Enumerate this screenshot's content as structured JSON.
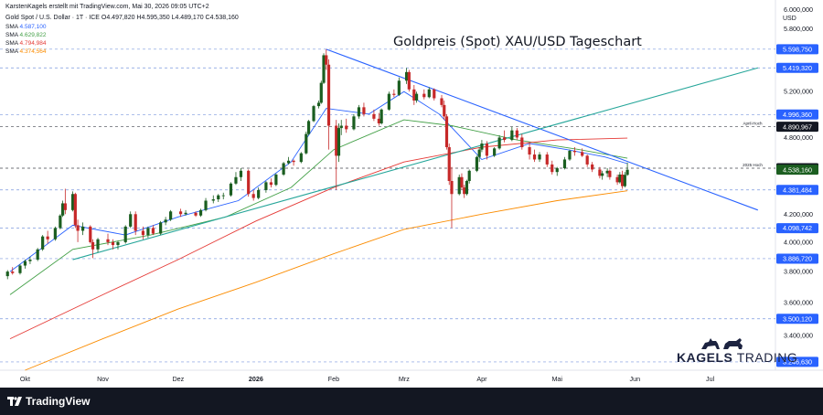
{
  "header": {
    "attribution": "KarstenKagels erstellt mit TradingView.com, Mai 30, 2026 09:05 UTC+2",
    "symbol_line": "Gold Spot / U.S. Dollar · 1T · ICE  O4.497,820 H4.595,350 L4.489,170 C4.538,160",
    "sma": [
      {
        "name": "SMA",
        "value": "4.587,100",
        "color": "#2962ff"
      },
      {
        "name": "SMA",
        "value": "4.629,822",
        "color": "#43a047"
      },
      {
        "name": "SMA",
        "value": "4.794,984",
        "color": "#e53935"
      },
      {
        "name": "SMA",
        "value": "4.374,564",
        "color": "#fb8c00"
      }
    ]
  },
  "title": "Goldpreis (Spot) XAU/USD Tageschart",
  "footer": {
    "brand": "TradingView"
  },
  "logo": {
    "kagels": "KAGELS",
    "trading": "TRADING"
  },
  "chart_data": {
    "type": "candlestick",
    "currency": "USD",
    "y_ticks": [
      "6.000,000",
      "5.800,000",
      "5.200,000",
      "4.800,000",
      "4.200,000",
      "4.000,000",
      "3.800,000",
      "3.600,000",
      "3.400,000"
    ],
    "y_tick_values": [
      6000,
      5800,
      5200,
      4800,
      4200,
      4000,
      3800,
      3600,
      3400
    ],
    "ylim": [
      3200,
      6100
    ],
    "x_ticks": [
      {
        "label": "Okt",
        "date": "2025-10-01",
        "bold": false
      },
      {
        "label": "Nov",
        "date": "2025-11-01",
        "bold": false
      },
      {
        "label": "Dez",
        "date": "2025-12-01",
        "bold": false
      },
      {
        "label": "2026",
        "date": "2026-01-01",
        "bold": true
      },
      {
        "label": "Feb",
        "date": "2026-02-01",
        "bold": false
      },
      {
        "label": "Mrz",
        "date": "2026-03-01",
        "bold": false
      },
      {
        "label": "Apr",
        "date": "2026-04-01",
        "bold": false
      },
      {
        "label": "Mai",
        "date": "2026-05-01",
        "bold": false
      },
      {
        "label": "Jun",
        "date": "2026-06-01",
        "bold": false
      },
      {
        "label": "Jul",
        "date": "2026-07-01",
        "bold": false
      }
    ],
    "horizontal_levels": [
      {
        "value": 5598.75,
        "label": "5.598,750",
        "style": "dashed",
        "color": "#5b7fd6"
      },
      {
        "value": 5419.32,
        "label": "5.419,320",
        "style": "dashed",
        "color": "#5b7fd6"
      },
      {
        "value": 4996.36,
        "label": "4.996,360",
        "style": "dashed",
        "color": "#5b7fd6"
      },
      {
        "value": 4890.967,
        "label": "4.890,967",
        "style": "dashed",
        "color": "#131722",
        "note": "April-Hoch"
      },
      {
        "value": 4550.52,
        "label": "4.550,520",
        "style": "dashed",
        "color": "#131722",
        "note": "2025 Hoch"
      },
      {
        "value": 4381.484,
        "label": "4.381,484",
        "style": "dashed",
        "color": "#5b7fd6"
      },
      {
        "value": 4098.742,
        "label": "4.098,742",
        "style": "dashed",
        "color": "#5b7fd6"
      },
      {
        "value": 3886.72,
        "label": "3.886,720",
        "style": "dashed",
        "color": "#5b7fd6"
      },
      {
        "value": 3500.12,
        "label": "3.500,120",
        "style": "dashed",
        "color": "#5b7fd6"
      },
      {
        "value": 3246.63,
        "label": "3.246,630",
        "style": "dashed",
        "color": "#5b7fd6"
      }
    ],
    "last_price": {
      "value": 4538.16,
      "label": "4.538,160"
    },
    "trendlines": [
      {
        "name": "Abwärtstrend",
        "color": "#2962ff",
        "from": {
          "date": "2026-01-29",
          "value": 5598.75
        },
        "to": {
          "date": "2026-07-20",
          "value": 4230
        }
      },
      {
        "name": "Aufwärtstrend",
        "color": "#26a69a",
        "from": {
          "date": "2025-10-20",
          "value": 3880
        },
        "to": {
          "date": "2026-07-20",
          "value": 5419.32
        }
      }
    ],
    "sma_lines": [
      {
        "color": "#2962ff",
        "points": [
          [
            "2025-09-25",
            3800
          ],
          [
            "2025-10-20",
            4120
          ],
          [
            "2025-11-10",
            4050
          ],
          [
            "2025-12-01",
            4180
          ],
          [
            "2025-12-25",
            4300
          ],
          [
            "2026-01-15",
            4600
          ],
          [
            "2026-01-29",
            5050
          ],
          [
            "2026-02-15",
            5000
          ],
          [
            "2026-03-01",
            5200
          ],
          [
            "2026-03-15",
            5000
          ],
          [
            "2026-04-01",
            4620
          ],
          [
            "2026-04-20",
            4750
          ],
          [
            "2026-05-05",
            4700
          ],
          [
            "2026-05-20",
            4640
          ],
          [
            "2026-05-29",
            4587
          ]
        ]
      },
      {
        "color": "#43a047",
        "points": [
          [
            "2025-09-25",
            3650
          ],
          [
            "2025-10-20",
            3950
          ],
          [
            "2025-11-20",
            4050
          ],
          [
            "2025-12-20",
            4180
          ],
          [
            "2026-01-15",
            4400
          ],
          [
            "2026-02-01",
            4700
          ],
          [
            "2026-03-01",
            4950
          ],
          [
            "2026-03-20",
            4900
          ],
          [
            "2026-04-15",
            4780
          ],
          [
            "2026-05-10",
            4700
          ],
          [
            "2026-05-29",
            4630
          ]
        ]
      },
      {
        "color": "#e53935",
        "points": [
          [
            "2025-09-25",
            3380
          ],
          [
            "2025-11-01",
            3650
          ],
          [
            "2025-12-01",
            3880
          ],
          [
            "2026-01-01",
            4150
          ],
          [
            "2026-02-01",
            4400
          ],
          [
            "2026-03-01",
            4600
          ],
          [
            "2026-04-01",
            4720
          ],
          [
            "2026-05-01",
            4780
          ],
          [
            "2026-05-29",
            4795
          ]
        ]
      },
      {
        "color": "#fb8c00",
        "points": [
          [
            "2025-10-01",
            3200
          ],
          [
            "2025-11-01",
            3380
          ],
          [
            "2025-12-01",
            3560
          ],
          [
            "2026-01-01",
            3730
          ],
          [
            "2026-02-01",
            3920
          ],
          [
            "2026-03-01",
            4090
          ],
          [
            "2026-04-01",
            4200
          ],
          [
            "2026-05-01",
            4300
          ],
          [
            "2026-05-29",
            4375
          ]
        ]
      }
    ],
    "candles": [
      [
        "2025-09-24",
        3770,
        3810,
        3750,
        3800
      ],
      [
        "2025-09-26",
        3800,
        3830,
        3780,
        3790
      ],
      [
        "2025-09-29",
        3790,
        3850,
        3780,
        3840
      ],
      [
        "2025-10-01",
        3840,
        3880,
        3820,
        3870
      ],
      [
        "2025-10-03",
        3870,
        3900,
        3850,
        3880
      ],
      [
        "2025-10-06",
        3880,
        3960,
        3870,
        3950
      ],
      [
        "2025-10-08",
        3950,
        4050,
        3940,
        4040
      ],
      [
        "2025-10-10",
        4040,
        4080,
        3990,
        4020
      ],
      [
        "2025-10-13",
        4020,
        4110,
        4010,
        4100
      ],
      [
        "2025-10-15",
        4100,
        4200,
        4090,
        4190
      ],
      [
        "2025-10-16",
        4190,
        4300,
        4180,
        4280
      ],
      [
        "2025-10-17",
        4280,
        4390,
        4200,
        4230
      ],
      [
        "2025-10-20",
        4230,
        4370,
        4220,
        4350
      ],
      [
        "2025-10-21",
        4350,
        4360,
        4100,
        4120
      ],
      [
        "2025-10-22",
        4120,
        4160,
        4000,
        4080
      ],
      [
        "2025-10-24",
        4080,
        4140,
        4050,
        4110
      ],
      [
        "2025-10-27",
        4110,
        4120,
        3990,
        4000
      ],
      [
        "2025-10-28",
        4000,
        4020,
        3890,
        3950
      ],
      [
        "2025-10-30",
        3950,
        4030,
        3930,
        4020
      ],
      [
        "2025-11-03",
        4020,
        4060,
        3980,
        4000
      ],
      [
        "2025-11-05",
        4000,
        4020,
        3950,
        3980
      ],
      [
        "2025-11-07",
        3980,
        4010,
        3950,
        4000
      ],
      [
        "2025-11-10",
        4000,
        4120,
        3990,
        4110
      ],
      [
        "2025-11-12",
        4110,
        4220,
        4100,
        4200
      ],
      [
        "2025-11-14",
        4200,
        4220,
        4050,
        4080
      ],
      [
        "2025-11-17",
        4080,
        4110,
        4020,
        4050
      ],
      [
        "2025-11-19",
        4050,
        4110,
        4030,
        4100
      ],
      [
        "2025-11-21",
        4100,
        4120,
        4050,
        4060
      ],
      [
        "2025-11-24",
        4060,
        4150,
        4050,
        4140
      ],
      [
        "2025-11-26",
        4140,
        4180,
        4120,
        4160
      ],
      [
        "2025-11-28",
        4160,
        4230,
        4150,
        4220
      ],
      [
        "2025-12-02",
        4220,
        4240,
        4180,
        4200
      ],
      [
        "2025-12-04",
        4200,
        4230,
        4190,
        4210
      ],
      [
        "2025-12-08",
        4210,
        4220,
        4180,
        4190
      ],
      [
        "2025-12-10",
        4190,
        4240,
        4180,
        4230
      ],
      [
        "2025-12-12",
        4230,
        4320,
        4220,
        4300
      ],
      [
        "2025-12-15",
        4300,
        4340,
        4280,
        4310
      ],
      [
        "2025-12-17",
        4310,
        4350,
        4290,
        4340
      ],
      [
        "2025-12-19",
        4340,
        4360,
        4310,
        4340
      ],
      [
        "2025-12-22",
        4340,
        4440,
        4330,
        4430
      ],
      [
        "2025-12-24",
        4430,
        4520,
        4420,
        4480
      ],
      [
        "2025-12-26",
        4480,
        4550,
        4450,
        4530
      ],
      [
        "2025-12-29",
        4530,
        4540,
        4330,
        4350
      ],
      [
        "2025-12-31",
        4350,
        4380,
        4300,
        4320
      ],
      [
        "2026-01-02",
        4320,
        4400,
        4310,
        4380
      ],
      [
        "2026-01-05",
        4380,
        4450,
        4360,
        4440
      ],
      [
        "2026-01-07",
        4440,
        4470,
        4400,
        4420
      ],
      [
        "2026-01-09",
        4420,
        4510,
        4410,
        4500
      ],
      [
        "2026-01-12",
        4500,
        4600,
        4490,
        4590
      ],
      [
        "2026-01-14",
        4590,
        4640,
        4580,
        4610
      ],
      [
        "2026-01-16",
        4610,
        4620,
        4570,
        4600
      ],
      [
        "2026-01-19",
        4600,
        4680,
        4590,
        4670
      ],
      [
        "2026-01-21",
        4670,
        4850,
        4660,
        4830
      ],
      [
        "2026-01-22",
        4830,
        4950,
        4820,
        4940
      ],
      [
        "2026-01-24",
        4940,
        5080,
        4930,
        5070
      ],
      [
        "2026-01-26",
        5070,
        5120,
        5050,
        5100
      ],
      [
        "2026-01-27",
        5100,
        5300,
        5090,
        5280
      ],
      [
        "2026-01-28",
        5280,
        5560,
        5270,
        5540
      ],
      [
        "2026-01-29",
        5540,
        5598,
        5400,
        5450
      ],
      [
        "2026-01-30",
        5450,
        5500,
        4700,
        4900
      ],
      [
        "2026-02-02",
        4900,
        4950,
        4380,
        4650
      ],
      [
        "2026-02-03",
        4650,
        4920,
        4600,
        4880
      ],
      [
        "2026-02-04",
        4880,
        4950,
        4820,
        4900
      ],
      [
        "2026-02-06",
        4900,
        4960,
        4840,
        4870
      ],
      [
        "2026-02-09",
        4870,
        5000,
        4860,
        4980
      ],
      [
        "2026-02-11",
        4980,
        5080,
        4960,
        5060
      ],
      [
        "2026-02-13",
        5060,
        5100,
        4980,
        5000
      ],
      [
        "2026-02-17",
        5000,
        5040,
        4940,
        4960
      ],
      [
        "2026-02-19",
        4960,
        5010,
        4900,
        4920
      ],
      [
        "2026-02-20",
        4920,
        5050,
        4910,
        5040
      ],
      [
        "2026-02-23",
        5040,
        5200,
        5030,
        5180
      ],
      [
        "2026-02-25",
        5180,
        5220,
        5150,
        5170
      ],
      [
        "2026-02-27",
        5170,
        5330,
        5160,
        5300
      ],
      [
        "2026-03-02",
        5300,
        5419,
        5270,
        5380
      ],
      [
        "2026-03-03",
        5380,
        5400,
        5200,
        5220
      ],
      [
        "2026-03-05",
        5220,
        5260,
        5080,
        5120
      ],
      [
        "2026-03-06",
        5120,
        5200,
        5100,
        5180
      ],
      [
        "2026-03-09",
        5180,
        5220,
        5130,
        5150
      ],
      [
        "2026-03-11",
        5150,
        5240,
        5140,
        5220
      ],
      [
        "2026-03-13",
        5220,
        5230,
        5120,
        5140
      ],
      [
        "2026-03-16",
        5140,
        5170,
        5060,
        5080
      ],
      [
        "2026-03-17",
        5080,
        5120,
        4950,
        4980
      ],
      [
        "2026-03-18",
        4980,
        5000,
        4700,
        4720
      ],
      [
        "2026-03-19",
        4720,
        4750,
        4420,
        4450
      ],
      [
        "2026-03-20",
        4450,
        4560,
        4100,
        4350
      ],
      [
        "2026-03-23",
        4350,
        4500,
        4340,
        4480
      ],
      [
        "2026-03-24",
        4480,
        4510,
        4380,
        4400
      ],
      [
        "2026-03-25",
        4400,
        4420,
        4320,
        4350
      ],
      [
        "2026-03-26",
        4350,
        4460,
        4340,
        4450
      ],
      [
        "2026-03-27",
        4450,
        4540,
        4430,
        4530
      ],
      [
        "2026-03-30",
        4530,
        4650,
        4520,
        4640
      ],
      [
        "2026-03-31",
        4640,
        4720,
        4600,
        4700
      ],
      [
        "2026-04-01",
        4700,
        4780,
        4680,
        4750
      ],
      [
        "2026-04-03",
        4750,
        4770,
        4620,
        4650
      ],
      [
        "2026-04-06",
        4650,
        4720,
        4640,
        4710
      ],
      [
        "2026-04-08",
        4710,
        4820,
        4700,
        4800
      ],
      [
        "2026-04-10",
        4800,
        4860,
        4760,
        4780
      ],
      [
        "2026-04-13",
        4780,
        4890,
        4770,
        4860
      ],
      [
        "2026-04-15",
        4860,
        4880,
        4780,
        4800
      ],
      [
        "2026-04-17",
        4800,
        4830,
        4700,
        4720
      ],
      [
        "2026-04-20",
        4720,
        4760,
        4620,
        4660
      ],
      [
        "2026-04-22",
        4660,
        4700,
        4600,
        4620
      ],
      [
        "2026-04-24",
        4620,
        4680,
        4600,
        4660
      ],
      [
        "2026-04-27",
        4660,
        4680,
        4560,
        4580
      ],
      [
        "2026-04-29",
        4580,
        4610,
        4500,
        4520
      ],
      [
        "2026-05-01",
        4520,
        4560,
        4490,
        4550
      ],
      [
        "2026-05-04",
        4550,
        4640,
        4540,
        4620
      ],
      [
        "2026-05-06",
        4620,
        4700,
        4610,
        4690
      ],
      [
        "2026-05-08",
        4690,
        4720,
        4650,
        4680
      ],
      [
        "2026-05-11",
        4680,
        4710,
        4640,
        4650
      ],
      [
        "2026-05-13",
        4650,
        4660,
        4560,
        4580
      ],
      [
        "2026-05-15",
        4580,
        4600,
        4520,
        4540
      ],
      [
        "2026-05-18",
        4540,
        4560,
        4470,
        4490
      ],
      [
        "2026-05-19",
        4490,
        4530,
        4460,
        4510
      ],
      [
        "2026-05-21",
        4510,
        4550,
        4480,
        4530
      ],
      [
        "2026-05-22",
        4530,
        4540,
        4460,
        4480
      ],
      [
        "2026-05-25",
        4480,
        4500,
        4420,
        4440
      ],
      [
        "2026-05-26",
        4440,
        4520,
        4430,
        4500
      ],
      [
        "2026-05-27",
        4500,
        4530,
        4390,
        4410
      ],
      [
        "2026-05-28",
        4410,
        4520,
        4400,
        4498
      ],
      [
        "2026-05-29",
        4497.82,
        4595.35,
        4489.17,
        4538.16
      ]
    ]
  }
}
